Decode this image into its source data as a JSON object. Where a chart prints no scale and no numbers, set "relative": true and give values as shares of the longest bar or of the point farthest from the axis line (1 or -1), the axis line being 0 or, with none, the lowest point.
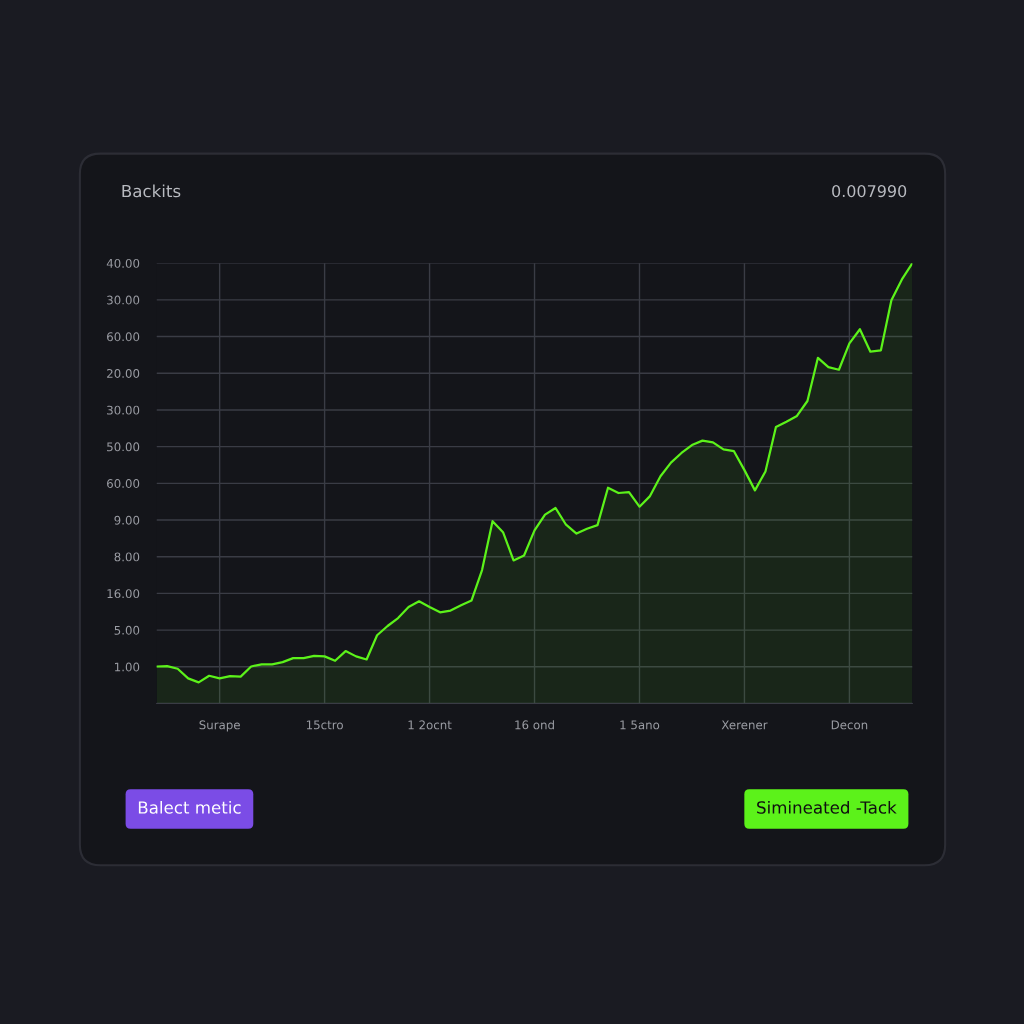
{
  "chart_data": {
    "type": "area",
    "title": "Backits",
    "annotations": [
      "0.007990",
      "Balect metic",
      "Simineated -Tack",
      "1.00",
      "5.00",
      "16.00",
      "8.00",
      "9.00",
      "60.00",
      "50.00",
      "30.00",
      "20.00",
      "60.00",
      "30.00",
      "40.00"
    ],
    "relative": true,
    "grid": true,
    "categories": [
      null,
      null,
      null,
      null,
      null,
      null,
      "Surape",
      null,
      null,
      null,
      null,
      null,
      null,
      null,
      null,
      null,
      "15ctro",
      null,
      null,
      null,
      null,
      null,
      null,
      null,
      null,
      null,
      "1 2ocnt",
      null,
      null,
      null,
      null,
      null,
      null,
      null,
      null,
      null,
      "16 ond",
      null,
      null,
      null,
      null,
      null,
      null,
      null,
      null,
      null,
      "1 5ano",
      null,
      null,
      null,
      null,
      null,
      null,
      null,
      null,
      null,
      "Xerener",
      null,
      null,
      null,
      null,
      null,
      null,
      null,
      null,
      null,
      "Decon",
      null,
      null,
      null,
      null,
      null,
      null
    ],
    "series": [
      {
        "color": "#5cf21a",
        "values": [
          0.084,
          0.085,
          0.079,
          0.057,
          0.048,
          0.063,
          0.057,
          0.062,
          0.061,
          0.084,
          0.089,
          0.089,
          0.094,
          0.103,
          0.103,
          0.108,
          0.107,
          0.097,
          0.119,
          0.107,
          0.1,
          0.155,
          0.176,
          0.194,
          0.219,
          0.232,
          0.219,
          0.207,
          0.211,
          0.223,
          0.234,
          0.303,
          0.414,
          0.389,
          0.325,
          0.336,
          0.393,
          0.429,
          0.444,
          0.406,
          0.386,
          0.397,
          0.405,
          0.49,
          0.478,
          0.48,
          0.447,
          0.471,
          0.516,
          0.547,
          0.569,
          0.587,
          0.597,
          0.593,
          0.577,
          0.573,
          0.53,
          0.484,
          0.527,
          0.628,
          0.64,
          0.653,
          0.687,
          0.785,
          0.764,
          0.758,
          0.818,
          0.85,
          0.799,
          0.802,
          0.916,
          0.963,
          1
        ]
      }
    ]
  }
}
